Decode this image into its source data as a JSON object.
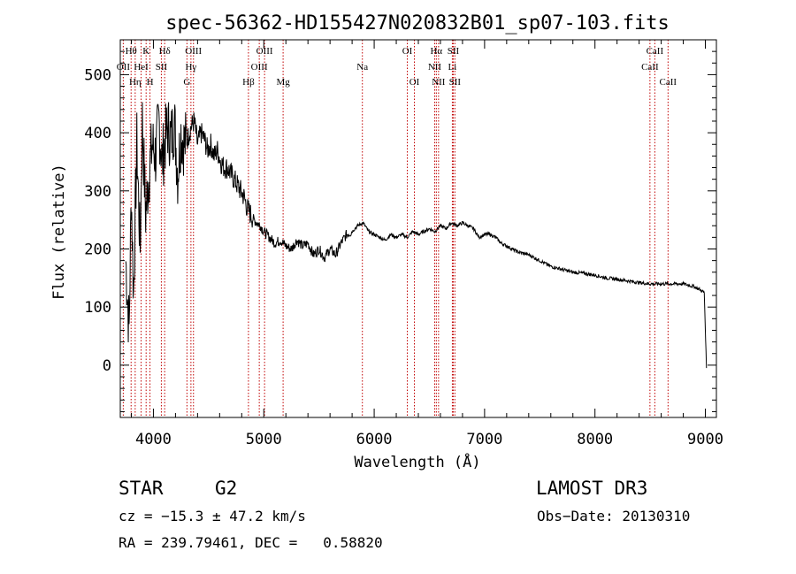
{
  "chart_data": {
    "type": "line",
    "title": "spec-56362-HD155427N020832B01_sp07-103.fits",
    "xlabel": "Wavelength (Å)",
    "ylabel": "Flux (relative)",
    "xlim": [
      3700,
      9100
    ],
    "ylim": [
      -90,
      560
    ],
    "xticks": [
      4000,
      5000,
      6000,
      7000,
      8000,
      9000
    ],
    "yticks": [
      0,
      100,
      200,
      300,
      400,
      500
    ],
    "grid": false,
    "series": [
      {
        "x": [
          3750,
          3780,
          3800,
          3820,
          3850,
          3880,
          3900,
          3930,
          3960,
          3990,
          4020,
          4050,
          4080,
          4100,
          4130,
          4160,
          4190,
          4220,
          4250,
          4280,
          4310,
          4340,
          4370,
          4400,
          4430,
          4460,
          4490,
          4520,
          4550,
          4580,
          4610,
          4640,
          4670,
          4700,
          4730,
          4760,
          4790,
          4820,
          4850,
          4880,
          4910,
          4940,
          4970,
          5000,
          5050,
          5100,
          5150,
          5200,
          5250,
          5300,
          5350,
          5400,
          5450,
          5500,
          5550,
          5600,
          5650,
          5700,
          5750,
          5800,
          5850,
          5900,
          5950,
          6000,
          6050,
          6100,
          6150,
          6200,
          6250,
          6300,
          6350,
          6400,
          6450,
          6500,
          6550,
          6600,
          6650,
          6700,
          6750,
          6800,
          6850,
          6900,
          6950,
          7000,
          7050,
          7100,
          7150,
          7200,
          7300,
          7400,
          7500,
          7600,
          7700,
          7800,
          7900,
          8000,
          8100,
          8200,
          8300,
          8400,
          8500,
          8600,
          8700,
          8800,
          8900,
          8950,
          8990,
          9010
        ],
        "y": [
          180,
          60,
          300,
          120,
          380,
          200,
          420,
          260,
          330,
          380,
          360,
          420,
          350,
          380,
          410,
          390,
          420,
          330,
          400,
          380,
          390,
          410,
          420,
          380,
          400,
          390,
          370,
          380,
          360,
          370,
          350,
          340,
          340,
          330,
          320,
          310,
          300,
          290,
          270,
          260,
          250,
          245,
          240,
          230,
          220,
          210,
          215,
          205,
          200,
          215,
          205,
          210,
          190,
          200,
          185,
          200,
          190,
          210,
          225,
          230,
          240,
          245,
          230,
          225,
          220,
          215,
          225,
          220,
          225,
          220,
          230,
          225,
          230,
          235,
          230,
          240,
          235,
          245,
          240,
          245,
          240,
          235,
          220,
          225,
          225,
          220,
          210,
          205,
          195,
          190,
          180,
          170,
          165,
          160,
          158,
          155,
          150,
          148,
          145,
          142,
          140,
          140,
          140,
          140,
          135,
          130,
          125,
          -5
        ]
      }
    ],
    "lines": [
      {
        "wl": 3727,
        "label": "OII",
        "row": 2
      },
      {
        "wl": 3798,
        "label": "Hθ",
        "row": 1
      },
      {
        "wl": 3835,
        "label": "Hη",
        "row": 3
      },
      {
        "wl": 3889,
        "label": "HeI",
        "row": 2
      },
      {
        "wl": 3934,
        "label": "K",
        "row": 1
      },
      {
        "wl": 3969,
        "label": "H",
        "row": 3
      },
      {
        "wl": 4072,
        "label": "SII",
        "row": 2
      },
      {
        "wl": 4102,
        "label": "Hδ",
        "row": 1
      },
      {
        "wl": 4304,
        "label": "G",
        "row": 3
      },
      {
        "wl": 4340,
        "label": "Hγ",
        "row": 2
      },
      {
        "wl": 4363,
        "label": "OIII",
        "row": 1
      },
      {
        "wl": 4861,
        "label": "Hβ",
        "row": 3
      },
      {
        "wl": 4959,
        "label": "OIII",
        "row": 2
      },
      {
        "wl": 5007,
        "label": "OIII",
        "row": 1
      },
      {
        "wl": 5175,
        "label": "Mg",
        "row": 3
      },
      {
        "wl": 5893,
        "label": "Na",
        "row": 2
      },
      {
        "wl": 6300,
        "label": "OI",
        "row": 1
      },
      {
        "wl": 6364,
        "label": "OI",
        "row": 3
      },
      {
        "wl": 6548,
        "label": "NII",
        "row": 2
      },
      {
        "wl": 6563,
        "label": "Hα",
        "row": 1
      },
      {
        "wl": 6583,
        "label": "NII",
        "row": 3
      },
      {
        "wl": 6708,
        "label": "Li",
        "row": 2
      },
      {
        "wl": 6716,
        "label": "SII",
        "row": 1
      },
      {
        "wl": 6731,
        "label": "SII",
        "row": 3
      },
      {
        "wl": 8498,
        "label": "CaII",
        "row": 2
      },
      {
        "wl": 8542,
        "label": "CaII",
        "row": 1
      },
      {
        "wl": 8662,
        "label": "CaII",
        "row": 3
      }
    ]
  },
  "footer": {
    "object_type": "STAR",
    "subclass": "G2",
    "survey": "LAMOST DR3",
    "velocity": "cz = −15.3 ± 47.2 km/s",
    "obs_date": "Obs−Date: 20130310",
    "coords": "RA = 239.79461, DEC =   0.58820"
  }
}
